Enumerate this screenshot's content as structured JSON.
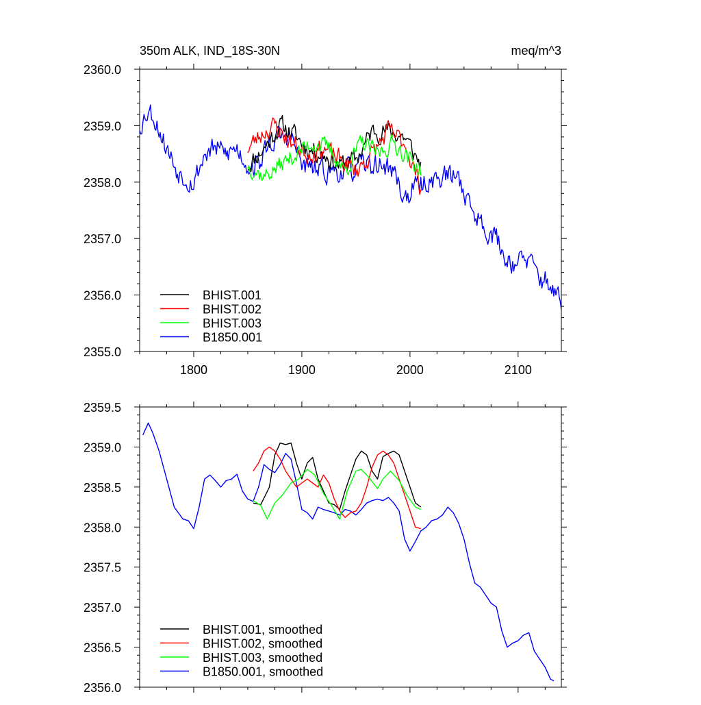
{
  "chart_data": [
    {
      "type": "line",
      "title_left": "350m ALK, IND_18S-30N",
      "title_right": "meq/m^3",
      "xlabel": "",
      "ylabel": "",
      "xlim": [
        1750,
        2140
      ],
      "ylim": [
        2355.0,
        2360.0
      ],
      "x_ticks": [
        1800,
        1900,
        2000,
        2100
      ],
      "y_ticks": [
        "2355.0",
        "2356.0",
        "2357.0",
        "2358.0",
        "2359.0",
        "2360.0"
      ],
      "y_tick_values": [
        2355,
        2356,
        2357,
        2358,
        2359,
        2360
      ],
      "legend": "bottom-left",
      "series": [
        {
          "name": "BHIST.001",
          "color": "#000000",
          "x_start": 1850,
          "x_end": 2010,
          "seed": 11,
          "noise": 0.28,
          "anchors": [
            [
              1850,
              2358.3
            ],
            [
              1865,
              2358.6
            ],
            [
              1880,
              2359.0
            ],
            [
              1890,
              2358.9
            ],
            [
              1905,
              2358.6
            ],
            [
              1920,
              2358.5
            ],
            [
              1935,
              2358.3
            ],
            [
              1950,
              2358.4
            ],
            [
              1965,
              2358.9
            ],
            [
              1980,
              2358.9
            ],
            [
              1995,
              2358.8
            ],
            [
              2010,
              2358.3
            ]
          ]
        },
        {
          "name": "BHIST.002",
          "color": "#ff0000",
          "x_start": 1850,
          "x_end": 2010,
          "seed": 23,
          "noise": 0.28,
          "anchors": [
            [
              1850,
              2358.6
            ],
            [
              1865,
              2358.9
            ],
            [
              1875,
              2359.0
            ],
            [
              1890,
              2358.7
            ],
            [
              1905,
              2358.5
            ],
            [
              1920,
              2358.6
            ],
            [
              1935,
              2358.4
            ],
            [
              1950,
              2358.2
            ],
            [
              1965,
              2358.5
            ],
            [
              1980,
              2358.9
            ],
            [
              1995,
              2358.7
            ],
            [
              2010,
              2357.9
            ]
          ]
        },
        {
          "name": "BHIST.003",
          "color": "#00ff00",
          "x_start": 1850,
          "x_end": 2010,
          "seed": 37,
          "noise": 0.25,
          "anchors": [
            [
              1850,
              2358.3
            ],
            [
              1865,
              2358.1
            ],
            [
              1880,
              2358.3
            ],
            [
              1895,
              2358.5
            ],
            [
              1910,
              2358.7
            ],
            [
              1925,
              2358.6
            ],
            [
              1940,
              2358.2
            ],
            [
              1955,
              2358.7
            ],
            [
              1970,
              2358.5
            ],
            [
              1985,
              2358.7
            ],
            [
              2000,
              2358.4
            ],
            [
              2010,
              2358.2
            ]
          ]
        },
        {
          "name": "B1850.001",
          "color": "#0000ff",
          "x_start": 1750,
          "x_end": 2140,
          "seed": 53,
          "noise": 0.32,
          "anchors": [
            [
              1750,
              2359.0
            ],
            [
              1758,
              2359.3
            ],
            [
              1765,
              2359.1
            ],
            [
              1775,
              2358.6
            ],
            [
              1785,
              2358.2
            ],
            [
              1800,
              2358.0
            ],
            [
              1810,
              2358.5
            ],
            [
              1820,
              2358.6
            ],
            [
              1830,
              2358.5
            ],
            [
              1840,
              2358.6
            ],
            [
              1850,
              2358.3
            ],
            [
              1860,
              2358.3
            ],
            [
              1870,
              2358.7
            ],
            [
              1880,
              2358.8
            ],
            [
              1890,
              2358.8
            ],
            [
              1900,
              2358.3
            ],
            [
              1915,
              2358.2
            ],
            [
              1930,
              2358.2
            ],
            [
              1945,
              2358.2
            ],
            [
              1960,
              2358.3
            ],
            [
              1975,
              2358.3
            ],
            [
              1985,
              2358.2
            ],
            [
              1995,
              2357.7
            ],
            [
              2005,
              2357.9
            ],
            [
              2015,
              2358.0
            ],
            [
              2030,
              2358.1
            ],
            [
              2045,
              2358.1
            ],
            [
              2055,
              2357.6
            ],
            [
              2065,
              2357.3
            ],
            [
              2080,
              2357.0
            ],
            [
              2090,
              2356.6
            ],
            [
              2100,
              2356.6
            ],
            [
              2110,
              2356.6
            ],
            [
              2120,
              2356.3
            ],
            [
              2130,
              2356.2
            ],
            [
              2140,
              2355.8
            ]
          ]
        }
      ]
    },
    {
      "type": "line",
      "title_left": "",
      "title_right": "",
      "xlabel": "",
      "ylabel": "",
      "xlim": [
        1750,
        2140
      ],
      "ylim": [
        2356.0,
        2359.5
      ],
      "x_ticks": [
        1800,
        1900,
        2000,
        2100
      ],
      "y_ticks": [
        "2356.0",
        "2356.5",
        "2357.0",
        "2357.5",
        "2358.0",
        "2358.5",
        "2359.0",
        "2359.5"
      ],
      "y_tick_values": [
        2356.0,
        2356.5,
        2357.0,
        2357.5,
        2358.0,
        2358.5,
        2359.0,
        2359.5
      ],
      "legend": "bottom-left",
      "series": [
        {
          "name": "BHIST.001, smoothed",
          "color": "#000000",
          "x": [
            1855,
            1862,
            1870,
            1875,
            1880,
            1885,
            1890,
            1895,
            1900,
            1905,
            1910,
            1915,
            1920,
            1925,
            1930,
            1935,
            1940,
            1945,
            1950,
            1955,
            1960,
            1965,
            1970,
            1975,
            1980,
            1985,
            1990,
            1995,
            2000,
            2005,
            2010
          ],
          "values": [
            2358.3,
            2358.28,
            2358.5,
            2358.9,
            2359.05,
            2359.03,
            2359.05,
            2358.8,
            2358.6,
            2358.8,
            2358.87,
            2358.6,
            2358.45,
            2358.3,
            2358.28,
            2358.22,
            2358.45,
            2358.65,
            2358.85,
            2358.95,
            2358.9,
            2358.7,
            2358.6,
            2358.88,
            2358.92,
            2358.95,
            2358.9,
            2358.7,
            2358.5,
            2358.3,
            2358.25
          ]
        },
        {
          "name": "BHIST.002, smoothed",
          "color": "#ff0000",
          "x": [
            1855,
            1860,
            1865,
            1870,
            1875,
            1880,
            1885,
            1890,
            1895,
            1900,
            1905,
            1910,
            1915,
            1920,
            1925,
            1930,
            1935,
            1940,
            1945,
            1950,
            1955,
            1960,
            1965,
            1970,
            1975,
            1980,
            1985,
            1990,
            1995,
            2000,
            2005,
            2010
          ],
          "values": [
            2358.7,
            2358.8,
            2358.95,
            2359.0,
            2358.95,
            2358.85,
            2358.7,
            2358.6,
            2358.5,
            2358.55,
            2358.6,
            2358.55,
            2358.5,
            2358.65,
            2358.55,
            2358.35,
            2358.2,
            2358.12,
            2358.18,
            2358.2,
            2358.3,
            2358.5,
            2358.75,
            2358.9,
            2358.95,
            2358.9,
            2358.8,
            2358.6,
            2358.4,
            2358.2,
            2358.0,
            2357.98
          ]
        },
        {
          "name": "BHIST.003, smoothed",
          "color": "#00ff00",
          "x": [
            1855,
            1862,
            1868,
            1875,
            1882,
            1890,
            1897,
            1905,
            1912,
            1920,
            1927,
            1935,
            1942,
            1950,
            1955,
            1962,
            1970,
            1975,
            1982,
            1990,
            1997,
            2005,
            2010
          ],
          "values": [
            2358.33,
            2358.27,
            2358.1,
            2358.3,
            2358.4,
            2358.55,
            2358.6,
            2358.72,
            2358.65,
            2358.42,
            2358.28,
            2358.1,
            2358.45,
            2358.7,
            2358.72,
            2358.62,
            2358.48,
            2358.6,
            2358.7,
            2358.58,
            2358.4,
            2358.25,
            2358.22
          ]
        },
        {
          "name": "B1850.001, smoothed",
          "color": "#0000ff",
          "x": [
            1753,
            1758,
            1762,
            1768,
            1775,
            1782,
            1790,
            1795,
            1800,
            1805,
            1810,
            1815,
            1820,
            1825,
            1830,
            1835,
            1840,
            1845,
            1850,
            1855,
            1860,
            1865,
            1870,
            1875,
            1880,
            1885,
            1890,
            1895,
            1900,
            1905,
            1910,
            1915,
            1920,
            1925,
            1930,
            1935,
            1940,
            1945,
            1950,
            1955,
            1960,
            1965,
            1970,
            1975,
            1980,
            1985,
            1990,
            1995,
            2000,
            2005,
            2010,
            2015,
            2020,
            2025,
            2030,
            2035,
            2040,
            2045,
            2050,
            2055,
            2060,
            2065,
            2070,
            2075,
            2080,
            2085,
            2090,
            2095,
            2100,
            2105,
            2110,
            2115,
            2120,
            2125,
            2130,
            2133
          ],
          "values": [
            2359.15,
            2359.3,
            2359.18,
            2358.95,
            2358.6,
            2358.25,
            2358.1,
            2358.08,
            2357.98,
            2358.25,
            2358.6,
            2358.65,
            2358.58,
            2358.5,
            2358.58,
            2358.6,
            2358.66,
            2358.45,
            2358.35,
            2358.32,
            2358.5,
            2358.78,
            2358.72,
            2358.68,
            2358.78,
            2358.92,
            2358.85,
            2358.55,
            2358.22,
            2358.18,
            2358.1,
            2358.25,
            2358.22,
            2358.2,
            2358.18,
            2358.15,
            2358.22,
            2358.2,
            2358.15,
            2358.22,
            2358.3,
            2358.33,
            2358.35,
            2358.33,
            2358.37,
            2358.3,
            2358.2,
            2357.85,
            2357.7,
            2357.82,
            2357.95,
            2358.0,
            2358.08,
            2358.1,
            2358.15,
            2358.25,
            2358.18,
            2358.05,
            2357.85,
            2357.55,
            2357.3,
            2357.25,
            2357.15,
            2357.05,
            2357.0,
            2356.7,
            2356.5,
            2356.55,
            2356.58,
            2356.65,
            2356.68,
            2356.45,
            2356.35,
            2356.25,
            2356.1,
            2356.08
          ]
        }
      ]
    }
  ]
}
